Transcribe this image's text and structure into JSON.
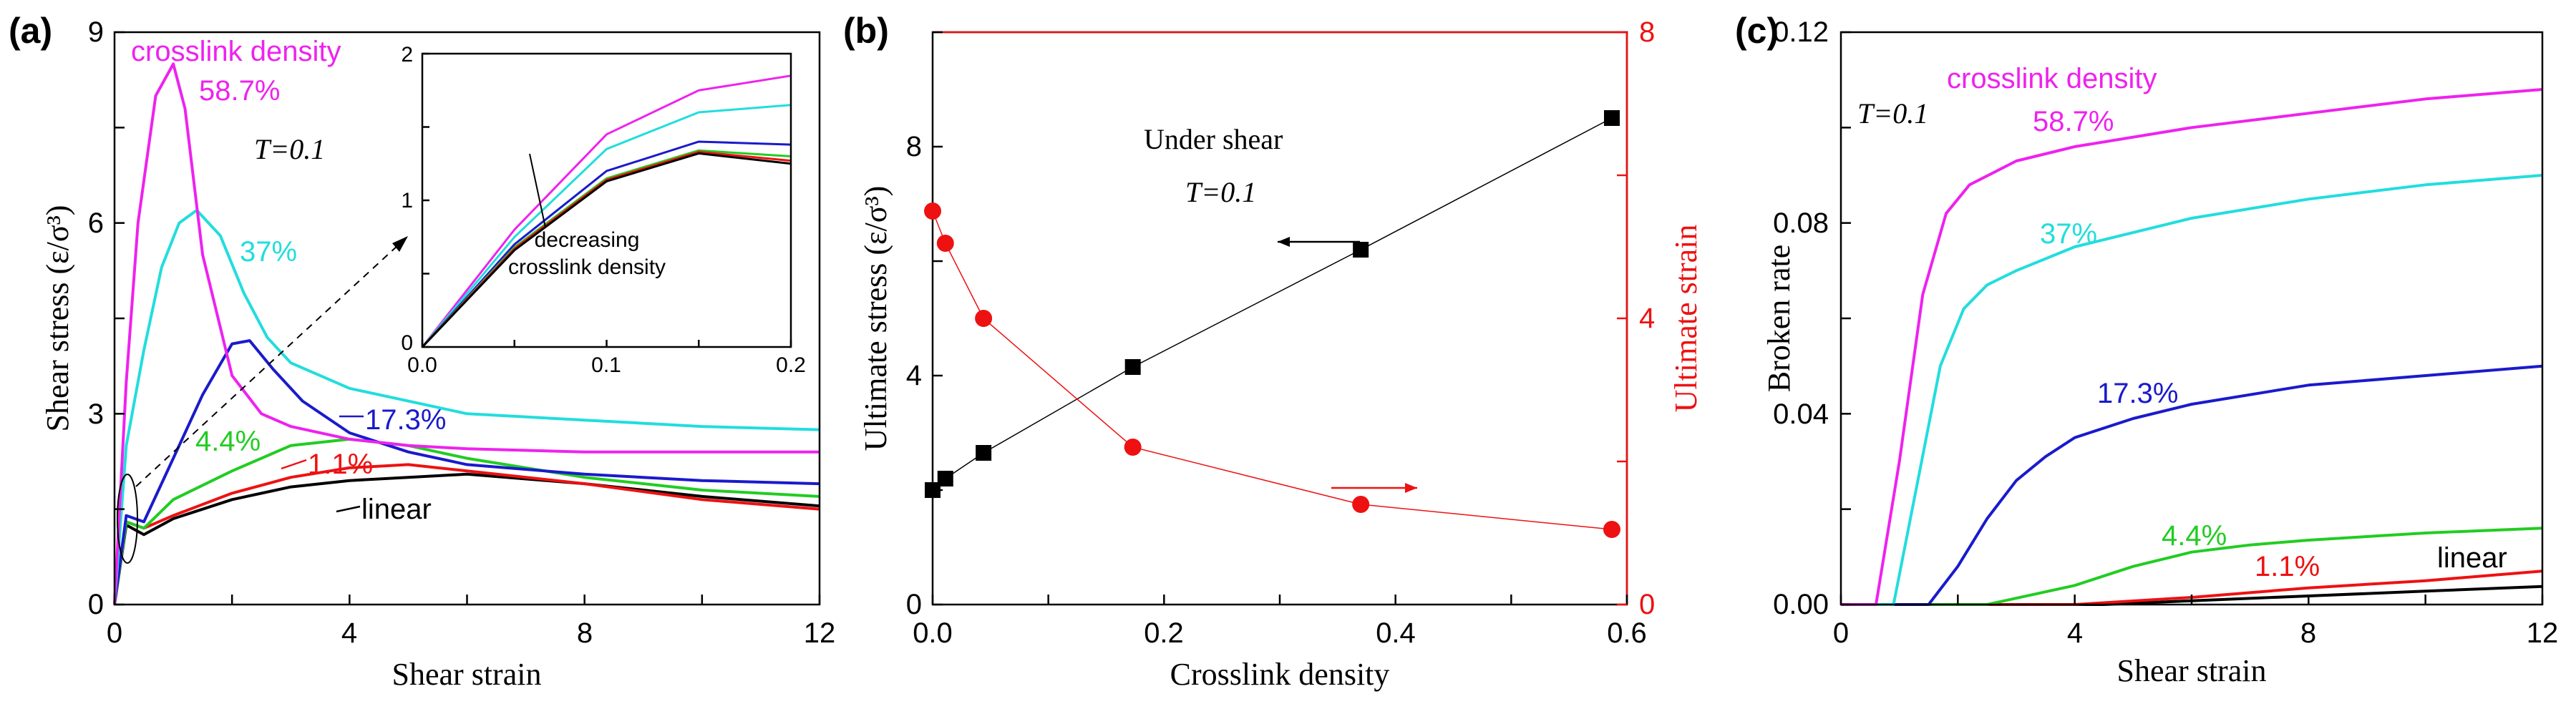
{
  "chart_data": [
    {
      "panel": "(a)",
      "type": "line",
      "xlabel": "Shear strain",
      "ylabel": "Shear stress (ε/σ³)",
      "xlim": [
        0,
        12
      ],
      "ylim": [
        0,
        9
      ],
      "xticks": [
        "0",
        "4",
        "8",
        "12"
      ],
      "yticks": [
        "0",
        "3",
        "6",
        "9"
      ],
      "annotation_title": "crosslink density",
      "temperature_label": "T=0.1",
      "series": [
        {
          "name": "58.7%",
          "color": "#ee22ee",
          "x": [
            0,
            0.2,
            0.4,
            0.7,
            1.0,
            1.2,
            1.5,
            2.0,
            2.5,
            3.0,
            4.0,
            5.0,
            6.0,
            8.0,
            10.0,
            12.0
          ],
          "y": [
            0,
            3.5,
            6.0,
            8.0,
            8.5,
            7.8,
            5.5,
            3.6,
            3.0,
            2.8,
            2.6,
            2.5,
            2.45,
            2.4,
            2.4,
            2.4
          ]
        },
        {
          "name": "37%",
          "color": "#22dddd",
          "x": [
            0,
            0.2,
            0.5,
            0.8,
            1.1,
            1.4,
            1.8,
            2.2,
            2.6,
            3.0,
            4.0,
            5.0,
            6.0,
            8.0,
            10.0,
            12.0
          ],
          "y": [
            0,
            2.5,
            4.0,
            5.3,
            6.0,
            6.2,
            5.8,
            4.9,
            4.2,
            3.8,
            3.4,
            3.2,
            3.0,
            2.9,
            2.8,
            2.75
          ]
        },
        {
          "name": "17.3%",
          "color": "#1a1acc",
          "x": [
            0,
            0.2,
            0.5,
            1.0,
            1.5,
            2.0,
            2.3,
            2.7,
            3.2,
            4.0,
            5.0,
            6.0,
            8.0,
            10.0,
            12.0
          ],
          "y": [
            0,
            1.4,
            1.3,
            2.3,
            3.3,
            4.1,
            4.15,
            3.7,
            3.2,
            2.7,
            2.4,
            2.2,
            2.05,
            1.95,
            1.9
          ]
        },
        {
          "name": "4.4%",
          "color": "#22cc22",
          "x": [
            0,
            0.2,
            0.5,
            1.0,
            2.0,
            3.0,
            4.0,
            5.0,
            6.0,
            8.0,
            10.0,
            12.0
          ],
          "y": [
            0,
            1.3,
            1.2,
            1.65,
            2.1,
            2.5,
            2.6,
            2.5,
            2.3,
            2.0,
            1.8,
            1.7
          ]
        },
        {
          "name": "1.1%",
          "color": "#ee1111",
          "x": [
            0,
            0.2,
            0.5,
            1.0,
            2.0,
            3.0,
            4.0,
            5.0,
            6.0,
            8.0,
            10.0,
            12.0
          ],
          "y": [
            0,
            1.3,
            1.2,
            1.4,
            1.75,
            2.0,
            2.15,
            2.2,
            2.1,
            1.9,
            1.65,
            1.5
          ]
        },
        {
          "name": "linear",
          "color": "#000000",
          "x": [
            0,
            0.2,
            0.5,
            1.0,
            2.0,
            3.0,
            4.0,
            5.0,
            6.0,
            8.0,
            10.0,
            12.0
          ],
          "y": [
            0,
            1.25,
            1.1,
            1.35,
            1.65,
            1.85,
            1.95,
            2.0,
            2.05,
            1.9,
            1.7,
            1.55
          ]
        }
      ],
      "inset": {
        "xlim": [
          0,
          0.2
        ],
        "ylim": [
          0,
          2
        ],
        "xticks": [
          "0.0",
          "0.1",
          "0.2"
        ],
        "yticks": [
          "0",
          "1",
          "2"
        ],
        "note_line1": "decreasing",
        "note_line2": "crosslink density",
        "series": [
          {
            "color": "#ee22ee",
            "x": [
              0,
              0.05,
              0.1,
              0.15,
              0.2
            ],
            "y": [
              0,
              0.8,
              1.45,
              1.75,
              1.85
            ]
          },
          {
            "color": "#22dddd",
            "x": [
              0,
              0.05,
              0.1,
              0.15,
              0.2
            ],
            "y": [
              0,
              0.75,
              1.35,
              1.6,
              1.65
            ]
          },
          {
            "color": "#1a1acc",
            "x": [
              0,
              0.05,
              0.1,
              0.15,
              0.2
            ],
            "y": [
              0,
              0.7,
              1.2,
              1.4,
              1.38
            ]
          },
          {
            "color": "#22cc22",
            "x": [
              0,
              0.05,
              0.1,
              0.15,
              0.2
            ],
            "y": [
              0,
              0.68,
              1.15,
              1.34,
              1.3
            ]
          },
          {
            "color": "#ee1111",
            "x": [
              0,
              0.05,
              0.1,
              0.15,
              0.2
            ],
            "y": [
              0,
              0.67,
              1.14,
              1.33,
              1.27
            ]
          },
          {
            "color": "#000000",
            "x": [
              0,
              0.05,
              0.1,
              0.15,
              0.2
            ],
            "y": [
              0,
              0.66,
              1.13,
              1.32,
              1.25
            ]
          }
        ]
      }
    },
    {
      "panel": "(b)",
      "type": "scatter",
      "xlabel": "Crosslink density",
      "ylabel_left": "Ultimate stress (ε/σ³)",
      "ylabel_right": "Ultimate strain",
      "xlim": [
        0,
        0.6
      ],
      "ylim_left": [
        0,
        10
      ],
      "ylim_right": [
        0,
        8
      ],
      "xticks": [
        "0.0",
        "0.2",
        "0.4",
        "0.6"
      ],
      "yticks_left": [
        "0",
        "4",
        "8"
      ],
      "yticks_right": [
        "0",
        "4",
        "8"
      ],
      "text_line1": "Under shear",
      "text_line2": "T=0.1",
      "series": [
        {
          "name": "Ultimate stress",
          "axis": "left",
          "color": "#000000",
          "marker": "square",
          "x": [
            0,
            0.011,
            0.044,
            0.173,
            0.37,
            0.587
          ],
          "y": [
            2.0,
            2.2,
            2.65,
            4.15,
            6.2,
            8.5
          ]
        },
        {
          "name": "Ultimate strain",
          "axis": "right",
          "color": "#ee1111",
          "marker": "circle",
          "x": [
            0,
            0.011,
            0.044,
            0.173,
            0.37,
            0.587
          ],
          "y": [
            5.5,
            5.05,
            4.0,
            2.2,
            1.4,
            1.05
          ]
        }
      ]
    },
    {
      "panel": "(c)",
      "type": "line",
      "xlabel": "Shear strain",
      "ylabel": "Broken rate",
      "xlim": [
        0,
        12
      ],
      "ylim": [
        0,
        0.12
      ],
      "xticks": [
        "0",
        "4",
        "8",
        "12"
      ],
      "yticks": [
        "0.00",
        "0.04",
        "0.08",
        "0.12"
      ],
      "annotation_title": "crosslink density",
      "temperature_label": "T=0.1",
      "series": [
        {
          "name": "58.7%",
          "color": "#ee22ee",
          "x": [
            0,
            0.6,
            1.0,
            1.4,
            1.8,
            2.2,
            3.0,
            4.0,
            6.0,
            8.0,
            10.0,
            12.0
          ],
          "y": [
            0,
            0,
            0.03,
            0.065,
            0.082,
            0.088,
            0.093,
            0.096,
            0.1,
            0.103,
            0.106,
            0.108
          ]
        },
        {
          "name": "37%",
          "color": "#22dddd",
          "x": [
            0,
            0.9,
            1.3,
            1.7,
            2.1,
            2.5,
            3.0,
            4.0,
            6.0,
            8.0,
            10.0,
            12.0
          ],
          "y": [
            0,
            0,
            0.025,
            0.05,
            0.062,
            0.067,
            0.07,
            0.075,
            0.081,
            0.085,
            0.088,
            0.09
          ]
        },
        {
          "name": "17.3%",
          "color": "#1a1acc",
          "x": [
            0,
            1.5,
            2.0,
            2.5,
            3.0,
            3.5,
            4.0,
            5.0,
            6.0,
            8.0,
            10.0,
            12.0
          ],
          "y": [
            0,
            0,
            0.008,
            0.018,
            0.026,
            0.031,
            0.035,
            0.039,
            0.042,
            0.046,
            0.048,
            0.05
          ]
        },
        {
          "name": "4.4%",
          "color": "#22cc22",
          "x": [
            0,
            2.5,
            4.0,
            5.0,
            6.0,
            7.0,
            8.0,
            10.0,
            12.0
          ],
          "y": [
            0,
            0,
            0.004,
            0.008,
            0.011,
            0.0125,
            0.0135,
            0.015,
            0.016
          ]
        },
        {
          "name": "1.1%",
          "color": "#ee1111",
          "x": [
            0,
            4.0,
            6.0,
            8.0,
            10.0,
            12.0
          ],
          "y": [
            0,
            0,
            0.0015,
            0.0035,
            0.005,
            0.007
          ]
        },
        {
          "name": "linear",
          "color": "#000000",
          "x": [
            0,
            4.5,
            6.0,
            8.0,
            10.0,
            12.0
          ],
          "y": [
            0,
            0,
            0.0008,
            0.0018,
            0.0028,
            0.0038
          ]
        }
      ]
    }
  ]
}
